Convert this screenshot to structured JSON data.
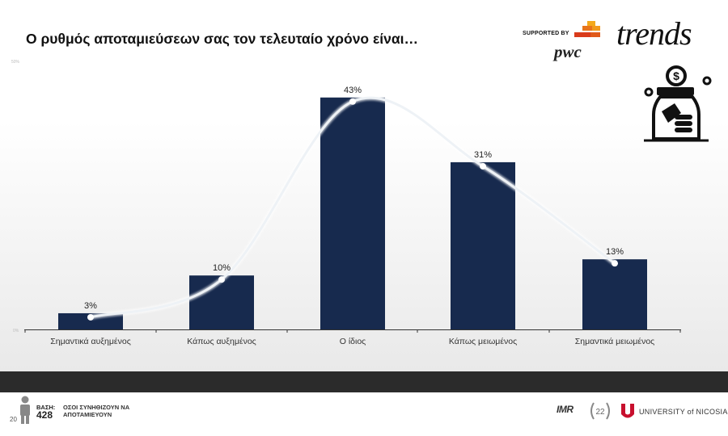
{
  "title": "Ο ρυθμός αποταμιεύσεων σας τον τελευταίο χρόνο είναι…",
  "branding": {
    "supported_by": "SUPPORTED BY",
    "pwc": "pwc",
    "trends": "trends",
    "imr": "IMR",
    "university": "UNIVERSITY of NICOSIA"
  },
  "footer": {
    "page": "20",
    "base_label": "ΒΑΣΗ:",
    "base_value": "428",
    "base_desc": "ΟΣΟΙ ΣΥΝΗΘΙΖΟΥΝ ΝΑ ΑΠΟΤΑΜΙΕΥΟΥΝ"
  },
  "colors": {
    "bar": "#172a4e",
    "curve": "#eef2f6",
    "accent": "#e05a1a"
  },
  "icons": [
    "money-jar-icon",
    "person-icon",
    "pwc-logo-icon",
    "university-logo-icon"
  ],
  "chart_data": {
    "type": "bar",
    "categories": [
      "Σημαντικά αυξημένος",
      "Κάπως αυξημένος",
      "Ο ίδιος",
      "Κάπως μειωμένος",
      "Σημαντικά μειωμένος"
    ],
    "values": [
      3,
      10,
      43,
      31,
      13
    ],
    "value_labels": [
      "3%",
      "10%",
      "43%",
      "31%",
      "13%"
    ],
    "ytick_labels": [
      "50%",
      "0%"
    ],
    "ylim": [
      0,
      50
    ],
    "grid": false
  }
}
